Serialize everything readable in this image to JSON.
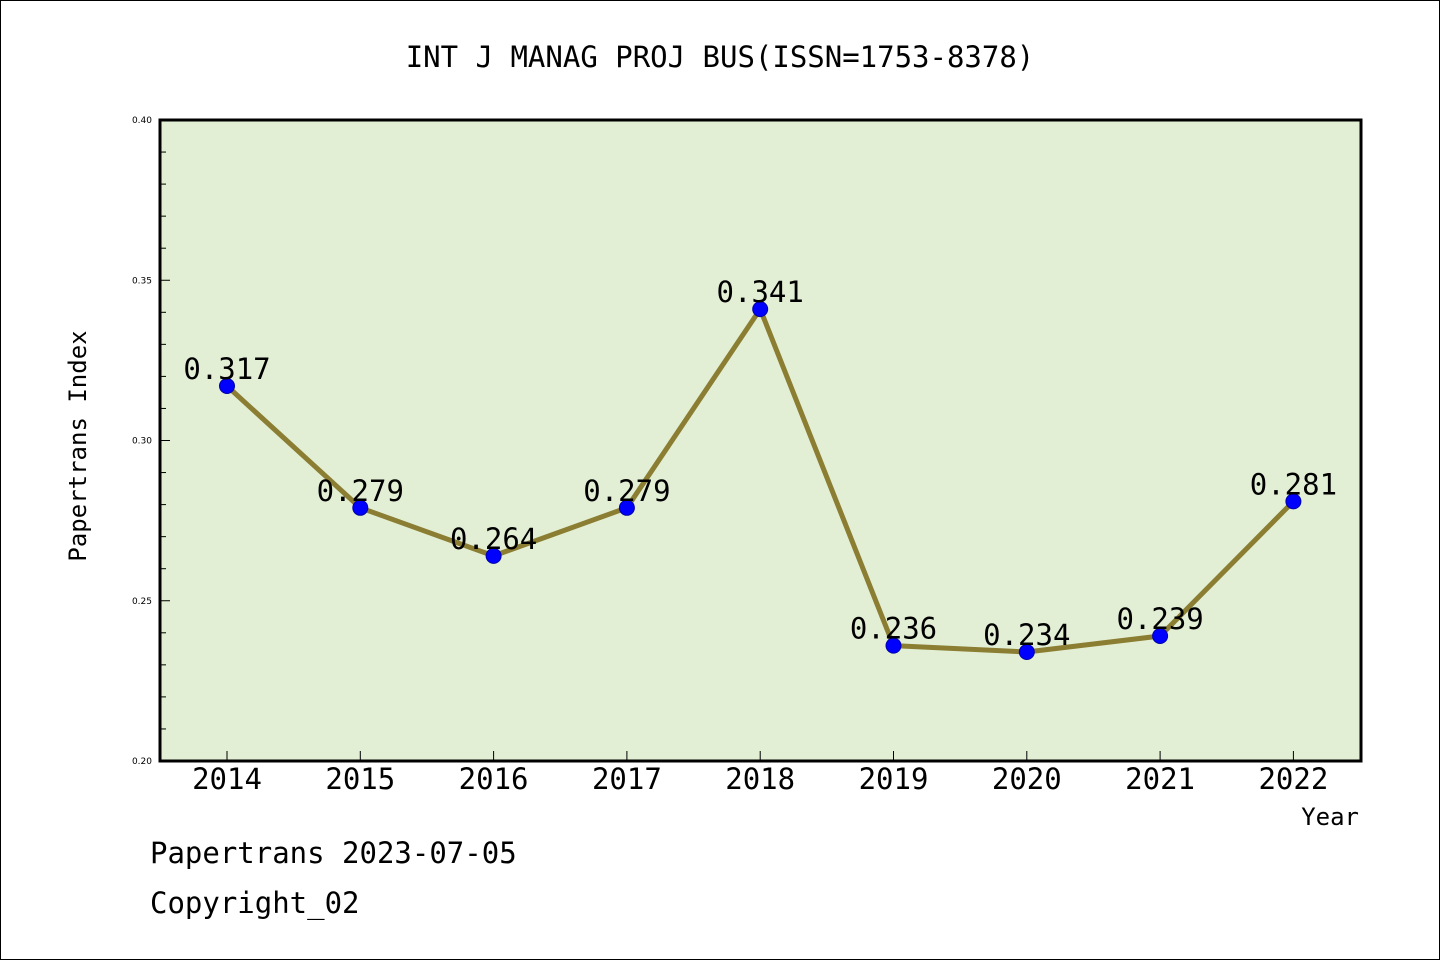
{
  "chart_data": {
    "type": "line",
    "title": "INT J MANAG PROJ BUS(ISSN=1753-8378)",
    "xlabel": "Year",
    "ylabel": "Papertrans Index",
    "categories": [
      "2014",
      "2015",
      "2016",
      "2017",
      "2018",
      "2019",
      "2020",
      "2021",
      "2022"
    ],
    "values": [
      0.317,
      0.279,
      0.264,
      0.279,
      0.341,
      0.236,
      0.234,
      0.239,
      0.281
    ],
    "data_labels": [
      "0.317",
      "0.279",
      "0.264",
      "0.279",
      "0.341",
      "0.236",
      "0.234",
      "0.239",
      "0.281"
    ],
    "ylim": [
      0.2,
      0.4
    ],
    "yticks": [
      "0.20",
      "0.25",
      "0.30",
      "0.35",
      "0.40"
    ],
    "grid": false,
    "colors": {
      "plot_background": "#e2efd4",
      "line": "#8b7d32",
      "marker": "#0000ff"
    }
  },
  "footer": {
    "date_line": "Papertrans 2023-07-05",
    "copyright_line": "Copyright_02"
  }
}
